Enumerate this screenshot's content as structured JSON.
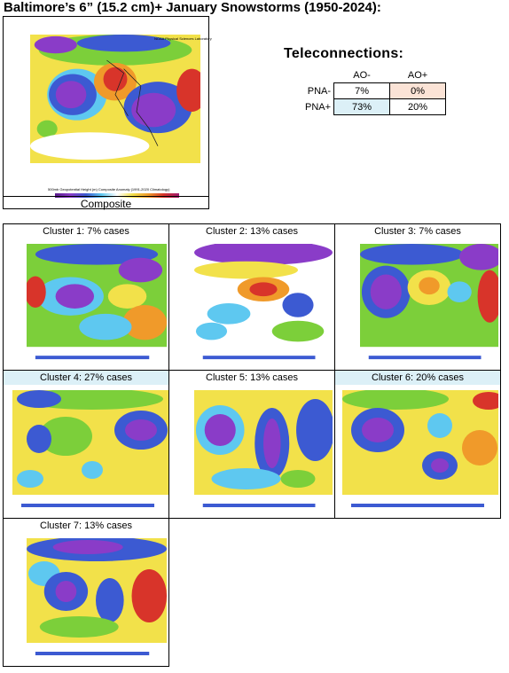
{
  "title": "Baltimore’s 6” (15.2 cm)+ January Snowstorms (1950-2024):",
  "composite": {
    "caption": "Composite",
    "map_header": "NOAA Physical Sciences Laboratory",
    "map_footer": "500mb Geopotential Height (m) Composite Anomaly (1991-2020 Climatology)",
    "colorbar_ticks": [
      "−100",
      "−80",
      "−60",
      "−40",
      "−20",
      "0",
      "20",
      "40",
      "60",
      "80",
      "100"
    ]
  },
  "teleconnections": {
    "title": "Teleconnections:",
    "columns": [
      "AO-",
      "AO+"
    ],
    "rows": [
      {
        "label": "PNA-",
        "values": [
          "7%",
          "0%"
        ]
      },
      {
        "label": "PNA+",
        "values": [
          "73%",
          "20%"
        ]
      }
    ]
  },
  "clusters": [
    {
      "label": "Cluster 1: 7%  cases"
    },
    {
      "label": "Cluster 2: 13% cases"
    },
    {
      "label": "Cluster 3: 7% cases"
    },
    {
      "label": "Cluster 4: 27% cases"
    },
    {
      "label": "Cluster 5: 13% cases"
    },
    {
      "label": "Cluster 6: 20% cases"
    },
    {
      "label": "Cluster 7: 13% cases"
    }
  ],
  "colors": {
    "deep_purple": "#5a1a8c",
    "purple": "#8a3cc8",
    "blue": "#3c5ad2",
    "cyan": "#5ec8f0",
    "green": "#7ccf3a",
    "yellow": "#f2e14a",
    "orange": "#f09a2a",
    "red": "#d8342a",
    "magenta": "#a0186e"
  }
}
